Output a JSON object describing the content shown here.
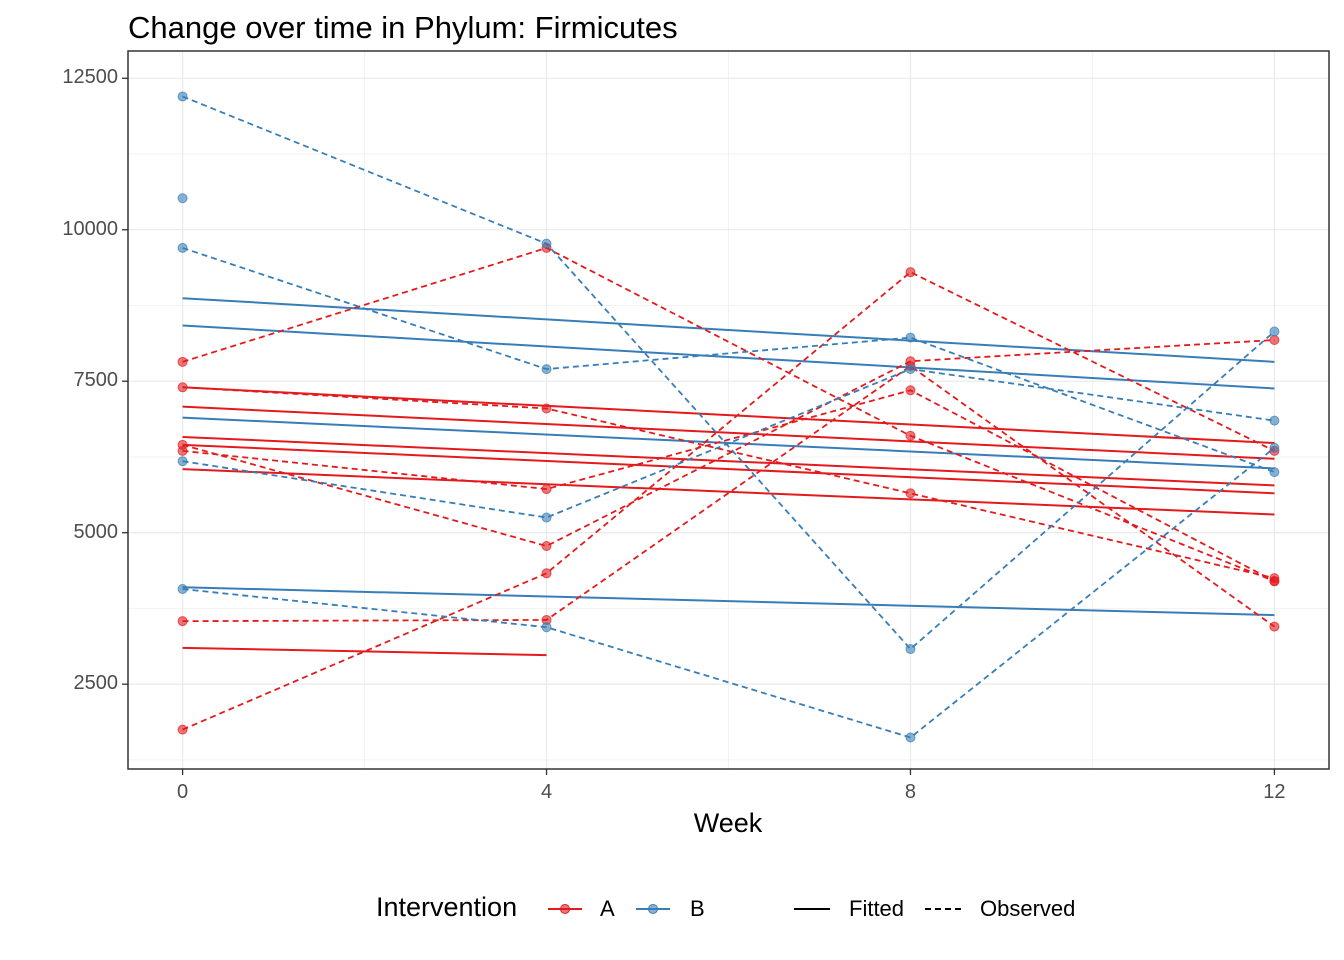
{
  "chart_data": {
    "type": "line",
    "title": "Change over time in Phylum: Firmicutes",
    "xlabel": "Week",
    "ylabel": "",
    "xlim": [
      -0.6,
      12.6
    ],
    "ylim": [
      1100,
      12950
    ],
    "x_ticks": [
      0,
      4,
      8,
      12
    ],
    "y_ticks": [
      2500,
      5000,
      7500,
      10000,
      12500
    ],
    "grid": true,
    "legend_position": "bottom",
    "legend": {
      "title": "Intervention",
      "groups": [
        {
          "label": "A",
          "color": "#E41A1C"
        },
        {
          "label": "B",
          "color": "#377EB8"
        }
      ],
      "linetypes": [
        {
          "label": "Fitted",
          "style": "solid"
        },
        {
          "label": "Observed",
          "style": "dashed"
        }
      ]
    },
    "observed": [
      {
        "group": "A",
        "x": [
          0,
          4,
          8,
          12
        ],
        "y": [
          1750,
          4330,
          9300,
          6350
        ]
      },
      {
        "group": "A",
        "x": [
          0,
          4,
          8,
          12
        ],
        "y": [
          7820,
          9700,
          6600,
          4200
        ]
      },
      {
        "group": "A",
        "x": [
          0,
          4,
          8,
          12
        ],
        "y": [
          7400,
          7050,
          5650,
          4250
        ]
      },
      {
        "group": "A",
        "x": [
          0,
          4,
          8,
          12
        ],
        "y": [
          6450,
          4780,
          7830,
          8180
        ]
      },
      {
        "group": "A",
        "x": [
          0,
          4,
          8,
          12
        ],
        "y": [
          6350,
          5720,
          7350,
          4200
        ]
      },
      {
        "group": "A",
        "x": [
          0,
          4,
          8,
          12
        ],
        "y": [
          3540,
          3560,
          7750,
          3450
        ]
      },
      {
        "group": "B",
        "x": [
          0,
          4,
          8,
          12
        ],
        "y": [
          12200,
          9770,
          3080,
          8320
        ]
      },
      {
        "group": "B",
        "x": [
          0,
          4,
          8,
          12
        ],
        "y": [
          9700,
          7700,
          8220,
          6000
        ]
      },
      {
        "group": "B",
        "x": [
          0,
          4,
          8,
          12
        ],
        "y": [
          6180,
          5250,
          7700,
          6850
        ]
      },
      {
        "group": "B",
        "x": [
          0,
          4,
          8,
          12
        ],
        "y": [
          4070,
          3440,
          1620,
          6400
        ]
      },
      {
        "group": "B",
        "x": [
          0
        ],
        "y": [
          10520
        ]
      }
    ],
    "fitted": [
      {
        "group": "B",
        "x": [
          0,
          12
        ],
        "y": [
          8870,
          7820
        ]
      },
      {
        "group": "B",
        "x": [
          0,
          12
        ],
        "y": [
          8420,
          7380
        ]
      },
      {
        "group": "B",
        "x": [
          0,
          12
        ],
        "y": [
          6900,
          6060
        ]
      },
      {
        "group": "B",
        "x": [
          0,
          12
        ],
        "y": [
          4100,
          3640
        ]
      },
      {
        "group": "A",
        "x": [
          0,
          12
        ],
        "y": [
          7400,
          6480
        ]
      },
      {
        "group": "A",
        "x": [
          0,
          12
        ],
        "y": [
          7080,
          6220
        ]
      },
      {
        "group": "A",
        "x": [
          0,
          12
        ],
        "y": [
          6580,
          5780
        ]
      },
      {
        "group": "A",
        "x": [
          0,
          12
        ],
        "y": [
          6450,
          5650
        ]
      },
      {
        "group": "A",
        "x": [
          0,
          12
        ],
        "y": [
          6050,
          5300
        ]
      },
      {
        "group": "A",
        "x": [
          0,
          4
        ],
        "y": [
          3100,
          2980
        ]
      }
    ]
  }
}
